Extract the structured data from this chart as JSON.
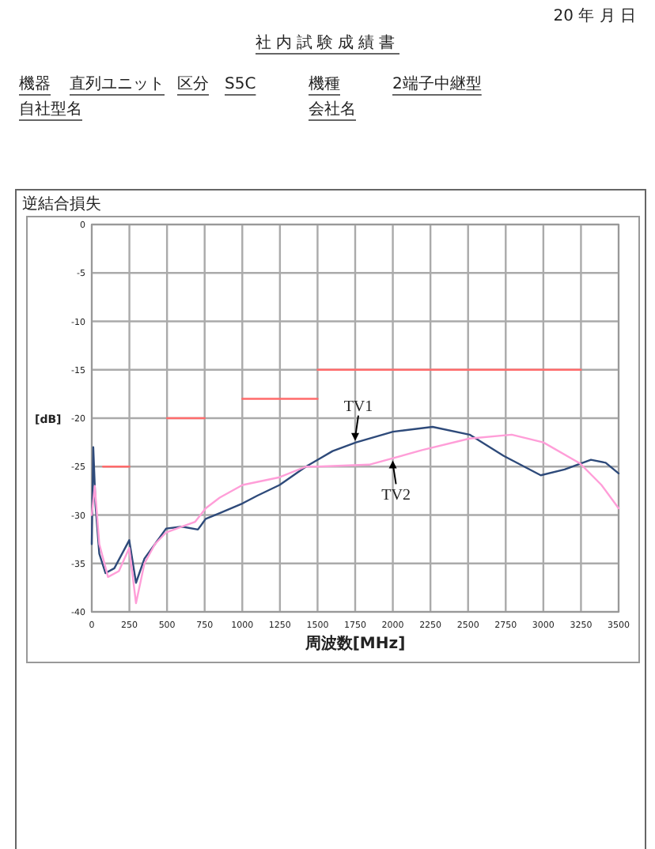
{
  "chart_data": {
    "type": "line",
    "title": "社内試験成績書",
    "subtitle": "逆結合損失",
    "xlabel": "周波数[MHz]",
    "ylabel": "[dB]",
    "xlim": [
      0,
      3500
    ],
    "xticks": [
      0,
      250,
      500,
      750,
      1000,
      1250,
      1500,
      1750,
      2000,
      2250,
      2500,
      2750,
      3000,
      3250,
      3500
    ],
    "ylim": [
      -40,
      0
    ],
    "yticks": [
      0,
      -5,
      -10,
      -15,
      -20,
      -25,
      -30,
      -35,
      -40
    ],
    "grid": true,
    "marker": "none",
    "line_style": "solid",
    "series": [
      {
        "color": "#ff6b6b",
        "x": [
          75,
          250
        ],
        "values": [
          -25,
          -25
        ]
      },
      {
        "color": "#ff6b6b",
        "x": [
          500,
          750
        ],
        "values": [
          -20,
          -20
        ]
      },
      {
        "color": "#ff6b6b",
        "x": [
          1000,
          1500
        ],
        "values": [
          -18,
          -18
        ]
      },
      {
        "color": "#ff6b6b",
        "x": [
          1500,
          3250
        ],
        "values": [
          -15,
          -15
        ]
      },
      {
        "color": "#2e4a7a",
        "x": [
          0,
          10,
          25,
          50,
          91,
          150,
          249,
          294,
          350,
          420,
          494,
          600,
          705,
          757,
          850,
          1002,
          1100,
          1248,
          1423,
          1511,
          1600,
          1756,
          2001,
          2264,
          2510,
          2737,
          2983,
          3141,
          3316,
          3414,
          3500
        ],
        "values": [
          -33,
          -23,
          -29,
          -34,
          -36,
          -35.5,
          -32.6,
          -37,
          -34.5,
          -33,
          -31.4,
          -31.2,
          -31.5,
          -30.4,
          -29.8,
          -28.8,
          -28,
          -26.9,
          -25,
          -24.2,
          -23.4,
          -22.5,
          -21.4,
          -20.9,
          -21.7,
          -23.9,
          -25.9,
          -25.3,
          -24.3,
          -24.6,
          -25.7
        ]
      },
      {
        "color": "#ff9ed8",
        "x": [
          0,
          20,
          50,
          108,
          180,
          249,
          294,
          350,
          420,
          494,
          600,
          687,
          757,
          850,
          1002,
          1248,
          1423,
          1500,
          1843,
          2194,
          2510,
          2790,
          3000,
          3246,
          3386,
          3500
        ],
        "values": [
          -30,
          -27,
          -33,
          -36.4,
          -35.8,
          -33.4,
          -39.1,
          -35,
          -33,
          -31.8,
          -31.2,
          -30.7,
          -29.3,
          -28.2,
          -26.9,
          -26.1,
          -25,
          -25,
          -24.8,
          -23.3,
          -22.1,
          -21.7,
          -22.5,
          -24.7,
          -26.9,
          -29.3
        ]
      }
    ],
    "annotations": [
      "20 年 月 日",
      "機器",
      "直列ユニット",
      "区分",
      "S5C",
      "機種",
      "2端子中継型",
      "自社型名",
      "会社名",
      {
        "text": "TV1",
        "x": 1750,
        "y": -22.5
      },
      {
        "text": "TV2",
        "x": 2000,
        "y": -24.2
      }
    ]
  }
}
